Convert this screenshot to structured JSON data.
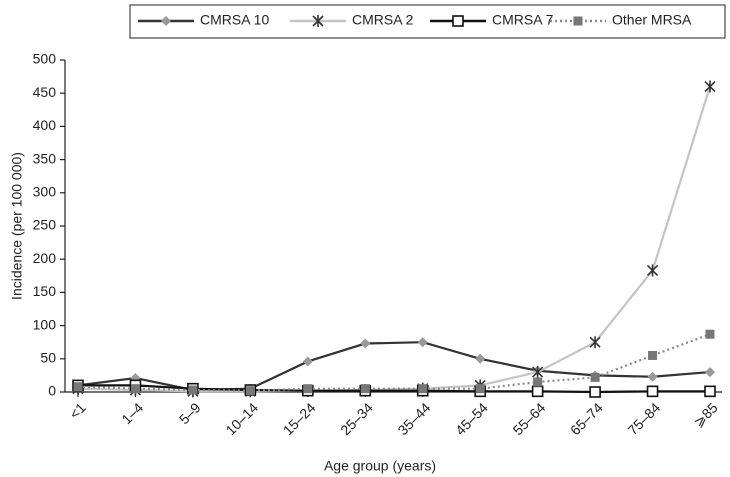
{
  "chart_data": {
    "type": "line",
    "x_label": "Age group (years)",
    "y_label": "Incidence (per 100 000)",
    "categories": [
      "<1",
      "1–4",
      "5–9",
      "10–14",
      "15–24",
      "25–34",
      "35–44",
      "45–54",
      "55–64",
      "65–74",
      "75–84",
      "⩾85"
    ],
    "series": [
      {
        "name": "CMRSA 10",
        "color": "#333333",
        "marker": "diamond",
        "marker_color": "#999999",
        "dash": "solid",
        "values": [
          10,
          21,
          3,
          5,
          46,
          73,
          75,
          50,
          32,
          25,
          23,
          30
        ]
      },
      {
        "name": "CMRSA 2",
        "color": "#c4c4c4",
        "marker": "star",
        "marker_color": "#333333",
        "dash": "solid",
        "values": [
          5,
          3,
          1,
          1,
          2,
          3,
          5,
          10,
          30,
          75,
          183,
          460
        ]
      },
      {
        "name": "CMRSA 7",
        "color": "#111111",
        "marker": "open-square",
        "marker_color": "#111111",
        "dash": "solid",
        "values": [
          10,
          10,
          5,
          3,
          2,
          2,
          2,
          1,
          1,
          0,
          1,
          1
        ]
      },
      {
        "name": "Other MRSA",
        "color": "#8a8a8a",
        "marker": "square",
        "marker_color": "#777777",
        "dash": "dotted",
        "values": [
          8,
          5,
          3,
          2,
          5,
          5,
          5,
          5,
          15,
          22,
          55,
          87
        ]
      }
    ],
    "ylim": [
      0,
      500
    ],
    "yticks": [
      0,
      50,
      100,
      150,
      200,
      250,
      300,
      350,
      400,
      450,
      500
    ],
    "grid": false,
    "legend": "top"
  }
}
